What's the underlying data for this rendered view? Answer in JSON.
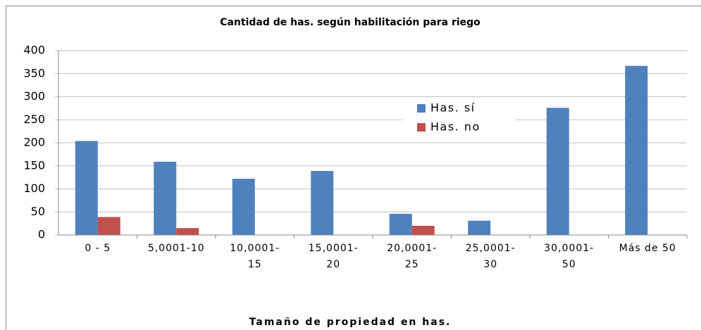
{
  "chart_data": {
    "type": "bar",
    "title": "Cantidad de has. según habilitación para riego",
    "x_label": "Tamaño de propiedad en has.",
    "categories": [
      "0 - 5",
      "5,0001-10",
      "10,0001-\n15",
      "15,0001-\n20",
      "20,0001-\n25",
      "25,0001-\n30",
      "30,0001-\n50",
      "Más de 50"
    ],
    "series": [
      {
        "name": "Has. sí",
        "color": "#4f81bd",
        "values": [
          204,
          159,
          122,
          139,
          46,
          31,
          276,
          367
        ]
      },
      {
        "name": "Has. no",
        "color": "#c0504d",
        "values": [
          39,
          15,
          0,
          0,
          20,
          0,
          0,
          0
        ]
      }
    ],
    "ylim": [
      0,
      400
    ],
    "yticks": [
      0,
      50,
      100,
      150,
      200,
      250,
      300,
      350,
      400
    ],
    "grid": true,
    "legend": "inside-center-right"
  }
}
